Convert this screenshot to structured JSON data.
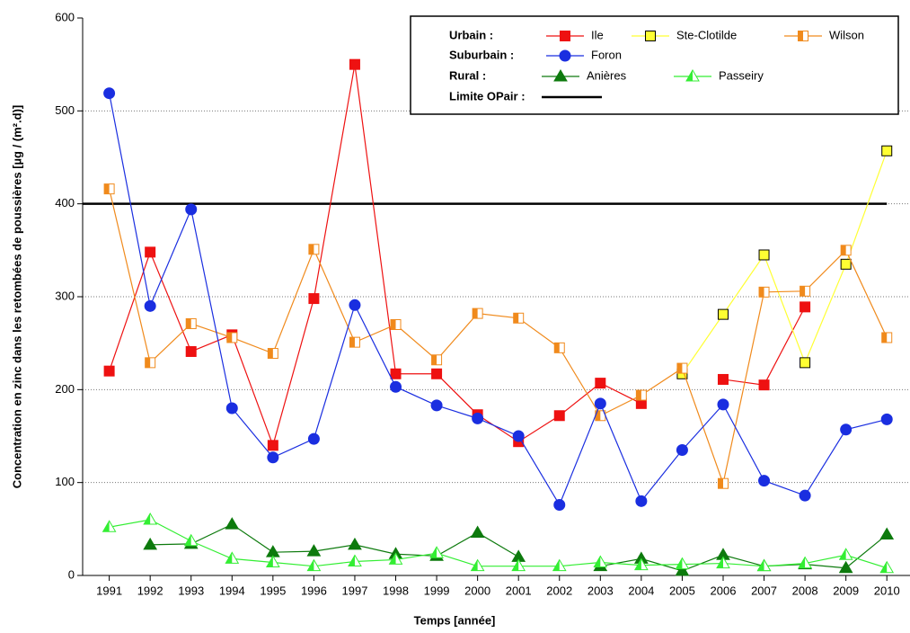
{
  "chart_data": {
    "type": "line",
    "x_label": "Temps [année]",
    "y_label": "Concentration en zinc dans les retombées de poussières [µg / (m².d)]",
    "x": [
      1991,
      1992,
      1993,
      1994,
      1995,
      1996,
      1997,
      1998,
      1999,
      2000,
      2001,
      2002,
      2003,
      2004,
      2005,
      2006,
      2007,
      2008,
      2009,
      2010
    ],
    "xlim": [
      1990.35,
      2010.5
    ],
    "xticks": [
      1991,
      1992,
      1993,
      1994,
      1995,
      1996,
      1997,
      1998,
      1999,
      2000,
      2001,
      2002,
      2003,
      2004,
      2005,
      2006,
      2007,
      2008,
      2009,
      2010
    ],
    "ylim": [
      0,
      600
    ],
    "yticks": [
      0,
      100,
      200,
      300,
      400,
      500,
      600
    ],
    "grid": true,
    "legend": {
      "groups": [
        "Urbain :",
        "Suburbain :",
        "Rural :"
      ]
    },
    "series": [
      {
        "name": "Ile",
        "color": "#ee1111",
        "marker": "square",
        "values": [
          220,
          348,
          241,
          259,
          140,
          298,
          550,
          217,
          217,
          173,
          144,
          172,
          207,
          185,
          null,
          211,
          205,
          289,
          null,
          null
        ]
      },
      {
        "name": "Ste-Clotilde",
        "color": "#ffff33",
        "marker": "square-outlined",
        "values": [
          null,
          null,
          null,
          null,
          null,
          null,
          null,
          null,
          null,
          null,
          null,
          null,
          null,
          null,
          217,
          281,
          345,
          229,
          335,
          457
        ]
      },
      {
        "name": "Wilson",
        "color": "#f08a1c",
        "marker": "square-half",
        "values": [
          416,
          229,
          271,
          256,
          239,
          351,
          251,
          270,
          232,
          282,
          277,
          245,
          172,
          194,
          223,
          99,
          305,
          306,
          350,
          256
        ]
      },
      {
        "name": "Foron",
        "color": "#1a2ee0",
        "marker": "circle",
        "values": [
          519,
          290,
          394,
          180,
          127,
          147,
          291,
          203,
          183,
          169,
          150,
          76,
          185,
          80,
          135,
          184,
          102,
          86,
          157,
          168
        ]
      },
      {
        "name": "Anières",
        "color": "#0d7a0d",
        "marker": "triangle",
        "values": [
          null,
          33,
          34,
          55,
          25,
          26,
          33,
          23,
          21,
          46,
          20,
          null,
          10,
          18,
          5,
          22,
          10,
          12,
          8,
          44
        ]
      },
      {
        "name": "Passeiry",
        "color": "#33ee33",
        "marker": "triangle-half",
        "values": [
          52,
          60,
          37,
          18,
          14,
          10,
          15,
          17,
          24,
          10,
          10,
          10,
          14,
          11,
          12,
          13,
          10,
          13,
          22,
          8
        ]
      }
    ],
    "reference_lines": [
      {
        "name": "Limite OPair :",
        "value": 400,
        "color": "#000000"
      }
    ]
  }
}
